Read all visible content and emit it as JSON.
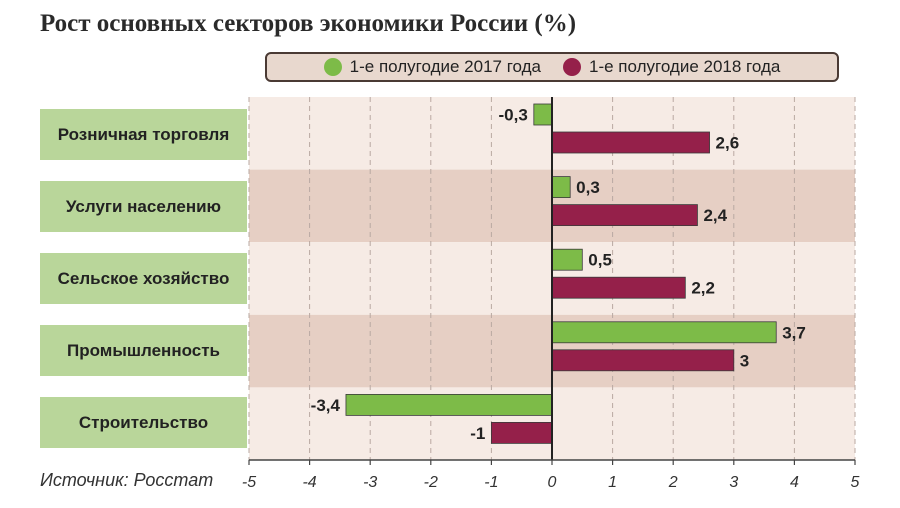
{
  "chart_data": {
    "type": "bar",
    "orientation": "horizontal",
    "title": "Рост основных секторов экономики России (%)",
    "categories": [
      "Розничная торговля",
      "Услуги населению",
      "Сельское хозяйство",
      "Промышленность",
      "Строительство"
    ],
    "series": [
      {
        "name": "1-е полугодие 2017 года",
        "color": "#7dbb48",
        "values": [
          -0.3,
          0.3,
          0.5,
          3.7,
          -3.4
        ]
      },
      {
        "name": "1-е полугодие 2018 года",
        "color": "#95204a",
        "values": [
          2.6,
          2.4,
          2.2,
          3,
          -1
        ]
      }
    ],
    "value_labels": [
      [
        "-0,3",
        "0,3",
        "0,5",
        "3,7",
        "-3,4"
      ],
      [
        "2,6",
        "2,4",
        "2,2",
        "3",
        "-1"
      ]
    ],
    "xlim": [
      -5,
      5
    ],
    "xticks": [
      -5,
      -4,
      -3,
      -2,
      -1,
      0,
      1,
      2,
      3,
      4,
      5
    ],
    "xtick_labels": [
      "-5",
      "-4",
      "-3",
      "-2",
      "-1",
      "0",
      "1",
      "2",
      "3",
      "4",
      "5"
    ],
    "grid": true,
    "legend_position": "top",
    "source": "Источник: Росстат"
  }
}
